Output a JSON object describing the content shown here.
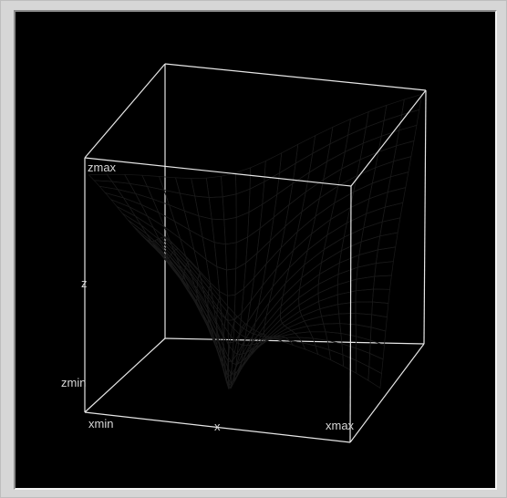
{
  "plot": {
    "type": "3d-surface",
    "colors": {
      "background": "#000000",
      "box": "#e6e6e6",
      "mesh": "#1a1a1a",
      "low": "#3a3556",
      "mid": "#b04a58",
      "high": "#e8f050"
    },
    "labels": {
      "zmax": "zmax",
      "z": "z",
      "zmin": "zmin",
      "xmin": "xmin",
      "x": "x",
      "xmax": "xmax"
    }
  }
}
